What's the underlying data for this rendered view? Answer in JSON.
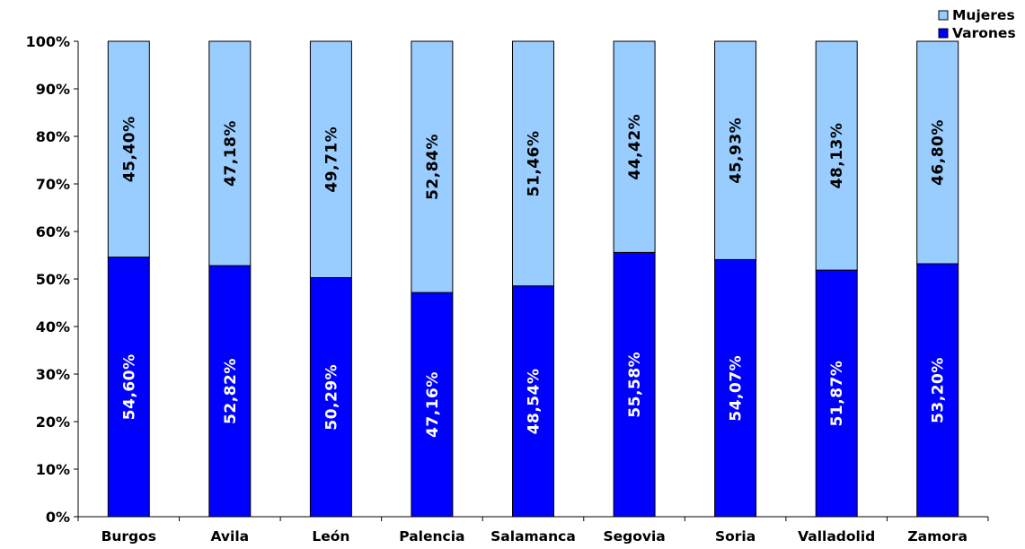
{
  "chart_data": {
    "type": "bar",
    "stacked": true,
    "title": "",
    "xlabel": "",
    "ylabel": "",
    "ylim": [
      0,
      100
    ],
    "grid": false,
    "legend_position": "top-right",
    "categories": [
      "Burgos",
      "Avila",
      "León",
      "Palencia",
      "Salamanca",
      "Segovia",
      "Soria",
      "Valladolid",
      "Zamora"
    ],
    "y_ticks": [
      "0%",
      "10%",
      "20%",
      "30%",
      "40%",
      "50%",
      "60%",
      "70%",
      "80%",
      "90%",
      "100%"
    ],
    "series": [
      {
        "name": "Varones",
        "color": "#0000ff",
        "values": [
          54.6,
          52.82,
          50.29,
          47.16,
          48.54,
          55.58,
          54.07,
          51.87,
          53.2
        ],
        "labels": [
          "54,60%",
          "52,82%",
          "50,29%",
          "47,16%",
          "48,54%",
          "55,58%",
          "54,07%",
          "51,87%",
          "53,20%"
        ]
      },
      {
        "name": "Mujeres",
        "color": "#99ccff",
        "values": [
          45.4,
          47.18,
          49.71,
          52.84,
          51.46,
          44.42,
          45.93,
          48.13,
          46.8
        ],
        "labels": [
          "45,40%",
          "47,18%",
          "49,71%",
          "52,84%",
          "51,46%",
          "44,42%",
          "45,93%",
          "48,13%",
          "46,80%"
        ]
      }
    ],
    "legend": [
      {
        "name": "Mujeres",
        "color": "#99ccff"
      },
      {
        "name": "Varones",
        "color": "#0000ff"
      }
    ]
  }
}
